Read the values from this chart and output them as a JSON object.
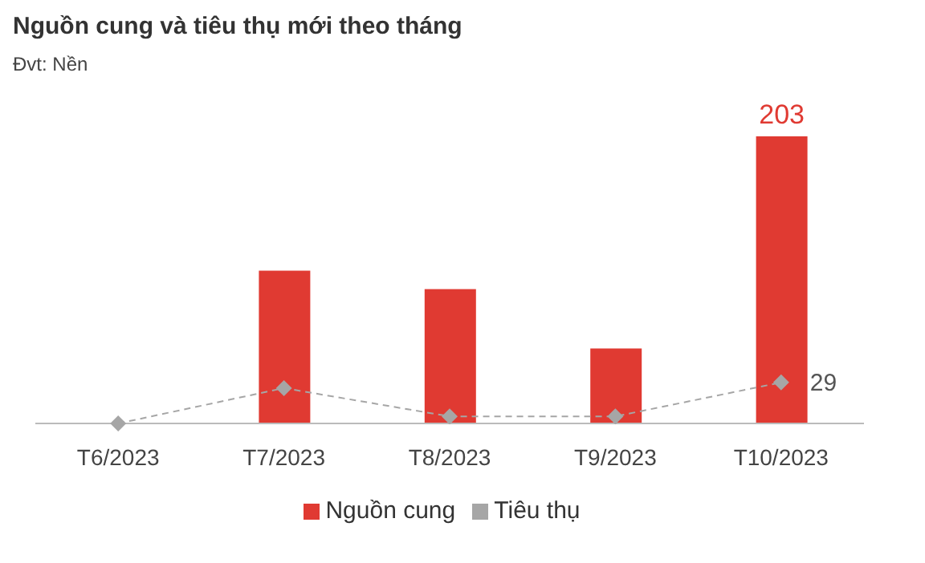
{
  "chart_data": {
    "type": "bar",
    "title": "Nguồn cung và tiêu thụ mới theo tháng",
    "subtitle": "Đvt: Nền",
    "categories": [
      "T6/2023",
      "T7/2023",
      "T8/2023",
      "T9/2023",
      "T10/2023"
    ],
    "series": [
      {
        "name": "Nguồn cung",
        "color": "#e03a32",
        "values": [
          0,
          108,
          95,
          53,
          203
        ],
        "value_labels": [
          null,
          null,
          null,
          null,
          "203"
        ]
      },
      {
        "name": "Tiêu thụ",
        "type": "line",
        "color": "#a6a6a6",
        "values": [
          0,
          25,
          5,
          5,
          29
        ],
        "value_labels": [
          null,
          null,
          null,
          null,
          "29"
        ],
        "marker": "diamond",
        "line_style": "dashed"
      }
    ],
    "legend": "bottom",
    "grid": false,
    "tick_labels": "x"
  }
}
